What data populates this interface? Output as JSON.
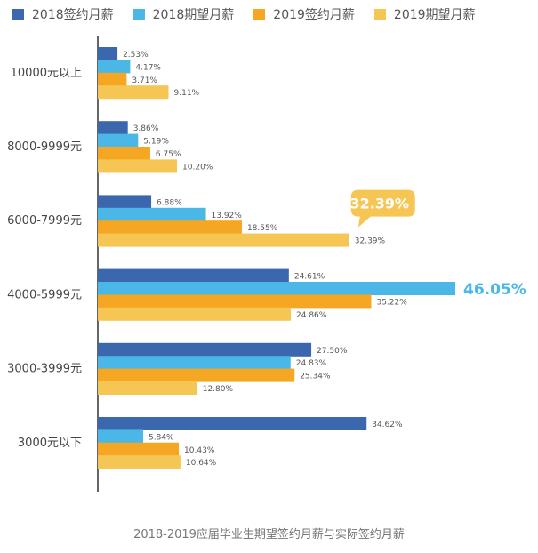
{
  "chart_data": {
    "type": "bar",
    "orientation": "horizontal",
    "title": "2018-2019应届毕业生期望签约月薪与实际签约月薪",
    "categories": [
      "10000元以上",
      "8000-9999元",
      "6000-7999元",
      "4000-5999元",
      "3000-3999元",
      "3000元以下"
    ],
    "series": [
      {
        "name": "2018签约月薪",
        "color": "#3b67ae",
        "values": [
          2.53,
          3.86,
          6.88,
          24.61,
          27.5,
          34.62
        ],
        "labels": [
          "2.53%",
          "3.86%",
          "6.88%",
          "24.61%",
          "27.50%",
          "34.62%"
        ]
      },
      {
        "name": "2018期望月薪",
        "color": "#4ab7e6",
        "values": [
          4.17,
          5.19,
          13.92,
          46.05,
          24.83,
          5.84
        ],
        "labels": [
          "4.17%",
          "5.19%",
          "13.92%",
          "46.05%",
          "24.83%",
          "5.84%"
        ]
      },
      {
        "name": "2019签约月薪",
        "color": "#f5a623",
        "values": [
          3.71,
          6.75,
          18.55,
          35.22,
          25.34,
          10.43
        ],
        "labels": [
          "3.71%",
          "6.75%",
          "18.55%",
          "35.22%",
          "25.34%",
          "10.43%"
        ]
      },
      {
        "name": "2019期望月薪",
        "color": "#f6c655",
        "values": [
          9.11,
          10.2,
          32.39,
          24.86,
          12.8,
          10.64
        ],
        "labels": [
          "9.11%",
          "10.20%",
          "32.39%",
          "24.86%",
          "12.80%",
          "10.64%"
        ]
      }
    ],
    "xlim": [
      0,
      50
    ],
    "highlights": [
      {
        "category_index": 3,
        "series_index": 1,
        "label": "46.05%",
        "style": "large-text",
        "color": "#4ab7e6"
      },
      {
        "category_index": 2,
        "series_index": 3,
        "label": "32.39%",
        "style": "callout-bubble",
        "color": "#f6c655"
      }
    ],
    "legend_position": "top",
    "grid": false
  }
}
